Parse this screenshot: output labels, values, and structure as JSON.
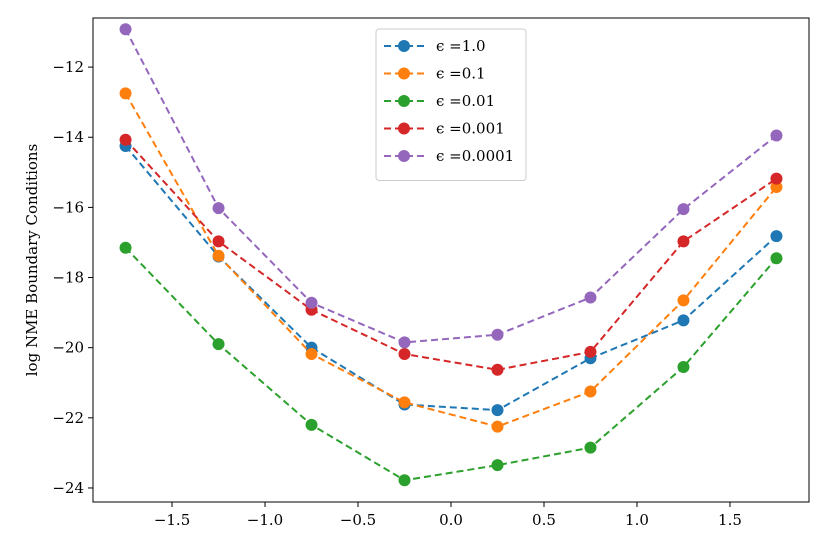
{
  "chart_data": {
    "type": "line",
    "title": "",
    "xlabel": "",
    "ylabel": "log NME Boundary Conditions",
    "xlim": [
      -1.925,
      1.925
    ],
    "ylim": [
      -24.4,
      -10.6
    ],
    "xticks": [
      -1.5,
      -1.0,
      -0.5,
      0.0,
      0.5,
      1.0,
      1.5
    ],
    "xtick_labels": [
      "−1.5",
      "−1.0",
      "−0.5",
      "0.0",
      "0.5",
      "1.0",
      "1.5"
    ],
    "yticks": [
      -24,
      -22,
      -20,
      -18,
      -16,
      -14,
      -12
    ],
    "ytick_labels": [
      "−24",
      "−22",
      "−20",
      "−18",
      "−16",
      "−14",
      "−12"
    ],
    "grid": false,
    "legend_position": "top-center",
    "x": [
      -1.75,
      -1.25,
      -0.75,
      -0.25,
      0.25,
      0.75,
      1.25,
      1.75
    ],
    "series": [
      {
        "name": "ϵ =1.0",
        "color": "#1f77b4",
        "values": [
          -14.25,
          -17.4,
          -20.0,
          -21.62,
          -21.78,
          -20.3,
          -19.22,
          -16.82
        ]
      },
      {
        "name": "ϵ =0.1",
        "color": "#ff7f0e",
        "values": [
          -12.75,
          -17.38,
          -20.18,
          -21.56,
          -22.25,
          -21.25,
          -18.65,
          -15.42
        ]
      },
      {
        "name": "ϵ =0.01",
        "color": "#2ca02c",
        "values": [
          -17.15,
          -19.9,
          -22.2,
          -23.78,
          -23.35,
          -22.85,
          -20.55,
          -17.45
        ]
      },
      {
        "name": "ϵ =0.001",
        "color": "#d62728",
        "values": [
          -14.07,
          -16.97,
          -18.92,
          -20.18,
          -20.63,
          -20.12,
          -16.97,
          -15.18
        ]
      },
      {
        "name": "ϵ =0.0001",
        "color": "#9467bd",
        "values": [
          -10.92,
          -16.02,
          -18.72,
          -19.85,
          -19.63,
          -18.57,
          -16.05,
          -13.95
        ]
      }
    ]
  }
}
